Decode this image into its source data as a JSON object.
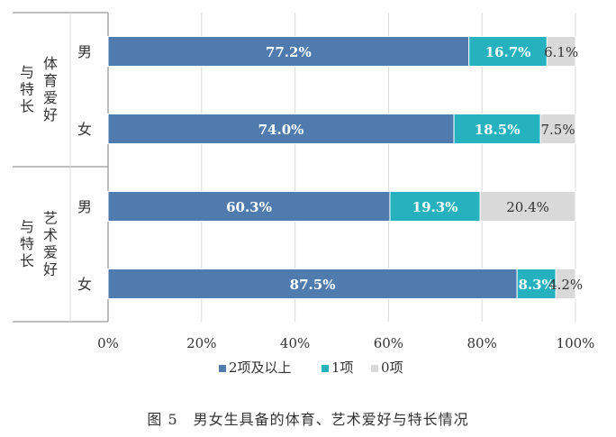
{
  "chart_data": {
    "type": "bar",
    "orientation": "horizontal",
    "stacked": true,
    "percent": true,
    "groups": [
      {
        "label": "体育爱好与特长",
        "rows": [
          {
            "category": "男",
            "values": [
              77.2,
              16.7,
              6.1
            ],
            "labels": [
              "77.2%",
              "16.7%",
              "6.1%"
            ]
          },
          {
            "category": "女",
            "values": [
              74.0,
              18.5,
              7.5
            ],
            "labels": [
              "74.0%",
              "18.5%",
              "7.5%"
            ]
          }
        ]
      },
      {
        "label": "艺术爱好与特长",
        "rows": [
          {
            "category": "男",
            "values": [
              60.3,
              19.3,
              20.4
            ],
            "labels": [
              "60.3%",
              "19.3%",
              "20.4%"
            ]
          },
          {
            "category": "女",
            "values": [
              87.5,
              8.3,
              4.2
            ],
            "labels": [
              "87.5%",
              "8.3%",
              "4.2%"
            ]
          }
        ]
      }
    ],
    "series": [
      {
        "name": "2项及以上",
        "color": "#4f7baf"
      },
      {
        "name": "1项",
        "color": "#25b1bd"
      },
      {
        "name": "0项",
        "color": "#d9d9d9"
      }
    ],
    "xlim": [
      0,
      100
    ],
    "xticks": [
      "0%",
      "20%",
      "40%",
      "60%",
      "80%",
      "100%"
    ],
    "grid": true,
    "legend_position": "bottom",
    "caption": "图 5　男女生具备的体育、艺术爱好与特长情况"
  }
}
